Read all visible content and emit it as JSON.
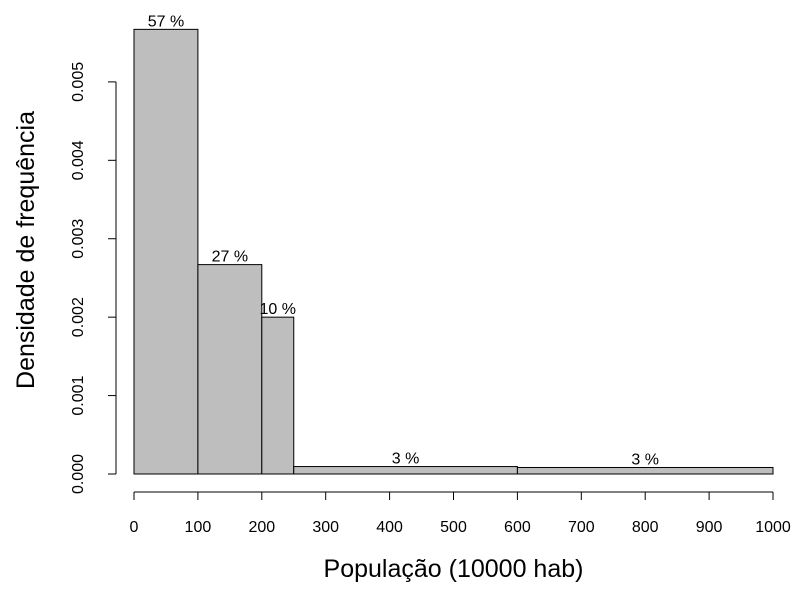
{
  "chart_data": {
    "type": "bar",
    "xlabel": "População (10000 hab)",
    "ylabel": "Densidade de frequência",
    "xlim": [
      0,
      1000
    ],
    "ylim": [
      0,
      0.0057
    ],
    "grid": false,
    "bars": [
      {
        "x_start": 0,
        "x_end": 100,
        "density": 0.00567,
        "label": "57 %"
      },
      {
        "x_start": 100,
        "x_end": 200,
        "density": 0.00267,
        "label": "27 %"
      },
      {
        "x_start": 200,
        "x_end": 250,
        "density": 0.002,
        "label": "10 %"
      },
      {
        "x_start": 250,
        "x_end": 600,
        "density": 9.5e-05,
        "label": "3 %"
      },
      {
        "x_start": 600,
        "x_end": 1000,
        "density": 8.3e-05,
        "label": "3 %"
      }
    ],
    "x_ticks": [
      0,
      100,
      200,
      300,
      400,
      500,
      600,
      700,
      800,
      900,
      1000
    ],
    "x_tick_labels": [
      "0",
      "100",
      "200",
      "300",
      "400",
      "500",
      "600",
      "700",
      "800",
      "900",
      "1000"
    ],
    "y_ticks": [
      0,
      0.001,
      0.002,
      0.003,
      0.004,
      0.005
    ],
    "y_tick_labels": [
      "0.000",
      "0.001",
      "0.002",
      "0.003",
      "0.004",
      "0.005"
    ],
    "colors": {
      "bar_fill": "#bebebe",
      "bar_stroke": "#000000"
    }
  }
}
